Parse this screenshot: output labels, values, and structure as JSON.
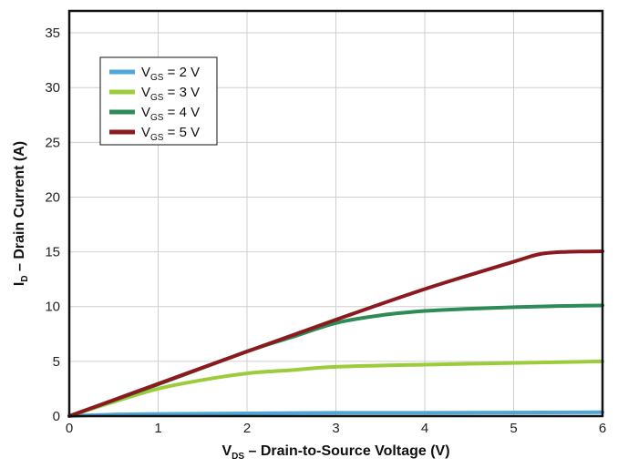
{
  "chart_data": {
    "type": "line",
    "xlabel": {
      "main": "V",
      "sub": "DS",
      "rest": " – Drain-to-Source Voltage (V)"
    },
    "ylabel": {
      "main": "I",
      "sub": "D",
      "rest": " – Drain Current (A)"
    },
    "xlim": [
      0,
      6
    ],
    "ylim": [
      0,
      37
    ],
    "xticks": [
      "0",
      "1",
      "2",
      "3",
      "4",
      "5",
      "6"
    ],
    "yticks": [
      "0",
      "5",
      "10",
      "15",
      "20",
      "25",
      "30",
      "35"
    ],
    "grid": true,
    "legend_position": "top-left",
    "series": [
      {
        "name": {
          "main": "V",
          "sub": "GS",
          "rest": " = 2 V"
        },
        "color": "#4fa6d8",
        "x": [
          0,
          0.5,
          1,
          2,
          3,
          4,
          5,
          6
        ],
        "y": [
          0,
          0.15,
          0.2,
          0.25,
          0.3,
          0.3,
          0.32,
          0.35
        ]
      },
      {
        "name": {
          "main": "V",
          "sub": "GS",
          "rest": " = 3 V"
        },
        "color": "#9ccc3c",
        "x": [
          0,
          0.5,
          1,
          1.5,
          2,
          2.5,
          3,
          4,
          5,
          6
        ],
        "y": [
          0,
          1.3,
          2.5,
          3.3,
          3.9,
          4.2,
          4.5,
          4.7,
          4.85,
          5.0
        ]
      },
      {
        "name": {
          "main": "V",
          "sub": "GS",
          "rest": " = 4 V"
        },
        "color": "#2e8b57",
        "x": [
          0,
          1,
          2,
          2.5,
          3,
          3.5,
          4,
          4.5,
          5,
          5.5,
          6
        ],
        "y": [
          0,
          2.9,
          5.9,
          7.2,
          8.5,
          9.2,
          9.6,
          9.8,
          9.95,
          10.05,
          10.1
        ]
      },
      {
        "name": {
          "main": "V",
          "sub": "GS",
          "rest": " = 5 V"
        },
        "color": "#8b1a1f",
        "x": [
          0,
          1,
          2,
          3,
          4,
          5,
          5.3,
          5.6,
          6
        ],
        "y": [
          0,
          2.95,
          5.9,
          8.8,
          11.6,
          14.1,
          14.8,
          15.0,
          15.05
        ]
      }
    ]
  }
}
